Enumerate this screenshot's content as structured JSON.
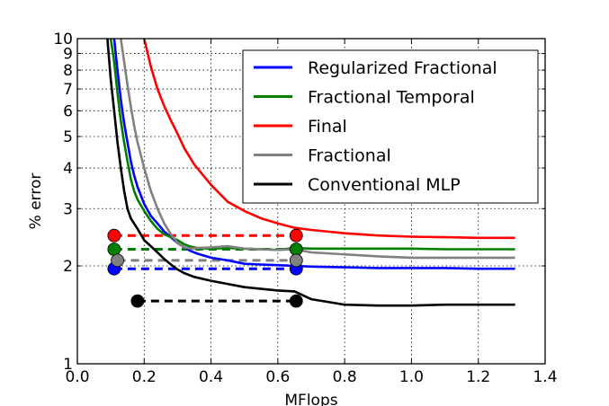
{
  "chart_data": {
    "type": "line",
    "title": "",
    "xlabel": "MFlops",
    "ylabel": "% error",
    "xlim": [
      0.0,
      1.4
    ],
    "ylim": [
      1,
      10
    ],
    "yscale": "log",
    "grid": true,
    "legend_position": "top-right",
    "xticks": [
      0.0,
      0.2,
      0.4,
      0.6,
      0.8,
      1.0,
      1.2,
      1.4
    ],
    "xtick_labels": [
      "0.0",
      "0.2",
      "0.4",
      "0.6",
      "0.8",
      "1.0",
      "1.2",
      "1.4"
    ],
    "yticks": [
      1,
      2,
      3,
      4,
      5,
      6,
      7,
      8,
      9,
      10
    ],
    "ytick_labels": [
      "1",
      "2",
      "3",
      "4",
      "5",
      "6",
      "7",
      "8",
      "9",
      "10"
    ],
    "series": [
      {
        "name": "Regularized Fractional",
        "color": "#0000ff",
        "x": [
          0.11,
          0.12,
          0.13,
          0.14,
          0.15,
          0.16,
          0.17,
          0.18,
          0.2,
          0.22,
          0.24,
          0.26,
          0.28,
          0.3,
          0.32,
          0.34,
          0.36,
          0.4,
          0.45,
          0.5,
          0.55,
          0.6,
          0.65,
          0.7,
          0.8,
          0.9,
          1.0,
          1.1,
          1.2,
          1.31
        ],
        "y": [
          10,
          8.0,
          6.5,
          5.5,
          4.8,
          4.2,
          3.8,
          3.5,
          3.1,
          2.85,
          2.7,
          2.55,
          2.45,
          2.35,
          2.28,
          2.22,
          2.18,
          2.12,
          2.08,
          2.03,
          2.02,
          2.01,
          2.0,
          1.99,
          1.98,
          1.97,
          1.97,
          1.97,
          1.96,
          1.96
        ]
      },
      {
        "name": "Fractional Temporal",
        "color": "#008000",
        "x": [
          0.1,
          0.11,
          0.12,
          0.13,
          0.14,
          0.15,
          0.16,
          0.17,
          0.18,
          0.2,
          0.22,
          0.24,
          0.26,
          0.28,
          0.3,
          0.32,
          0.34,
          0.36,
          0.4,
          0.45,
          0.5,
          0.55,
          0.6,
          0.65,
          0.7,
          0.8,
          0.9,
          1.0,
          1.1,
          1.2,
          1.31
        ],
        "y": [
          10,
          8.5,
          6.8,
          5.6,
          4.8,
          4.2,
          3.7,
          3.4,
          3.2,
          2.95,
          2.75,
          2.6,
          2.5,
          2.45,
          2.4,
          2.33,
          2.29,
          2.27,
          2.26,
          2.27,
          2.26,
          2.25,
          2.24,
          2.27,
          2.26,
          2.26,
          2.26,
          2.26,
          2.25,
          2.25,
          2.25
        ]
      },
      {
        "name": "Final",
        "color": "#ff0000",
        "x": [
          0.2,
          0.22,
          0.24,
          0.26,
          0.28,
          0.3,
          0.32,
          0.35,
          0.4,
          0.45,
          0.5,
          0.55,
          0.6,
          0.65,
          0.7,
          0.8,
          0.9,
          1.0,
          1.1,
          1.2,
          1.31
        ],
        "y": [
          10,
          8.2,
          7.0,
          6.2,
          5.6,
          5.1,
          4.6,
          4.1,
          3.55,
          3.15,
          2.95,
          2.8,
          2.7,
          2.62,
          2.58,
          2.52,
          2.48,
          2.46,
          2.45,
          2.44,
          2.44
        ]
      },
      {
        "name": "Fractional",
        "color": "#808080",
        "x": [
          0.13,
          0.14,
          0.15,
          0.16,
          0.17,
          0.18,
          0.2,
          0.22,
          0.24,
          0.26,
          0.28,
          0.3,
          0.32,
          0.34,
          0.36,
          0.4,
          0.45,
          0.5,
          0.55,
          0.6,
          0.65,
          0.7,
          0.8,
          0.9,
          1.0,
          1.1,
          1.2,
          1.31
        ],
        "y": [
          10,
          8.5,
          7.2,
          6.2,
          5.4,
          4.8,
          4.0,
          3.4,
          3.0,
          2.7,
          2.5,
          2.35,
          2.28,
          2.26,
          2.27,
          2.28,
          2.3,
          2.26,
          2.25,
          2.24,
          2.25,
          2.2,
          2.17,
          2.14,
          2.12,
          2.12,
          2.12,
          2.12
        ]
      },
      {
        "name": "Conventional MLP",
        "color": "#000000",
        "x": [
          0.09,
          0.1,
          0.11,
          0.12,
          0.13,
          0.14,
          0.15,
          0.16,
          0.18,
          0.2,
          0.22,
          0.24,
          0.26,
          0.28,
          0.3,
          0.32,
          0.35,
          0.4,
          0.45,
          0.5,
          0.55,
          0.6,
          0.65,
          0.7,
          0.75,
          0.8,
          0.9,
          1.0,
          1.1,
          1.2,
          1.31
        ],
        "y": [
          10,
          7.5,
          6.0,
          4.8,
          4.0,
          3.4,
          3.0,
          2.8,
          2.6,
          2.4,
          2.3,
          2.2,
          2.1,
          2.02,
          1.95,
          1.9,
          1.85,
          1.8,
          1.76,
          1.72,
          1.7,
          1.68,
          1.67,
          1.58,
          1.55,
          1.52,
          1.51,
          1.51,
          1.52,
          1.52,
          1.52
        ]
      }
    ],
    "markers": [
      {
        "color": "#0000ff",
        "x1": 0.11,
        "x2": 0.655,
        "y": 1.96
      },
      {
        "color": "#008000",
        "x1": 0.11,
        "x2": 0.655,
        "y": 2.25
      },
      {
        "color": "#ff0000",
        "x1": 0.11,
        "x2": 0.655,
        "y": 2.48
      },
      {
        "color": "#808080",
        "x1": 0.12,
        "x2": 0.655,
        "y": 2.08
      },
      {
        "color": "#000000",
        "x1": 0.18,
        "x2": 0.655,
        "y": 1.56
      }
    ]
  }
}
